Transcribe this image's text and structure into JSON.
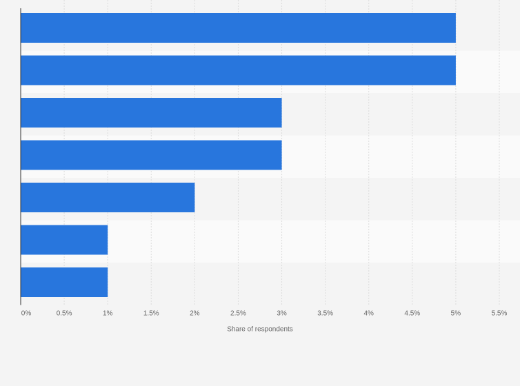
{
  "chart_data": {
    "type": "bar",
    "orientation": "horizontal",
    "categories": [
      "",
      "",
      "",
      "",
      "",
      "",
      ""
    ],
    "values": [
      5,
      5,
      3,
      3,
      2,
      1,
      1
    ],
    "value_unit": "%",
    "xlabel": "Share of respondents",
    "ylabel": "",
    "xlim": [
      0,
      5.5
    ],
    "xticks": [
      0,
      0.5,
      1,
      1.5,
      2,
      2.5,
      3,
      3.5,
      4,
      4.5,
      5,
      5.5
    ],
    "xtick_labels": [
      "0%",
      "0.5%",
      "1%",
      "1.5%",
      "2%",
      "2.5%",
      "3%",
      "3.5%",
      "4%",
      "4.5%",
      "5%",
      "5.5%"
    ],
    "grid": "vertical dotted",
    "legend": "none",
    "colors": {
      "bar": "#2876dd",
      "background": "#f4f4f4",
      "band_light": "#fafafa",
      "band_dark": "#f4f4f4",
      "grid": "#dcdcdc",
      "axis": "#333333",
      "text": "#666666"
    }
  }
}
